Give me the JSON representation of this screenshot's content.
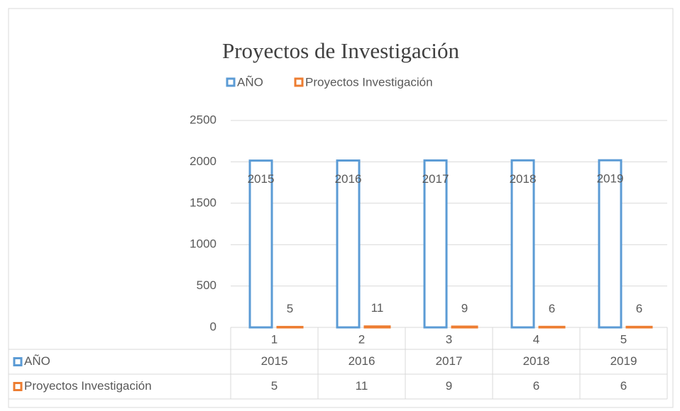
{
  "chart_data": {
    "type": "bar",
    "title": "Proyectos de Investigación",
    "categories": [
      "1",
      "2",
      "3",
      "4",
      "5"
    ],
    "series": [
      {
        "name": "AÑO",
        "color": "#5b9bd5",
        "values": [
          2015,
          2016,
          2017,
          2018,
          2019
        ]
      },
      {
        "name": "Proyectos Investigación",
        "color": "#ed7d31",
        "values": [
          5,
          11,
          9,
          6,
          6
        ]
      }
    ],
    "ylim": [
      0,
      2500
    ],
    "yticks": [
      0,
      500,
      1000,
      1500,
      2000,
      2500
    ],
    "grid": true,
    "legend": "top",
    "data_table": true
  }
}
